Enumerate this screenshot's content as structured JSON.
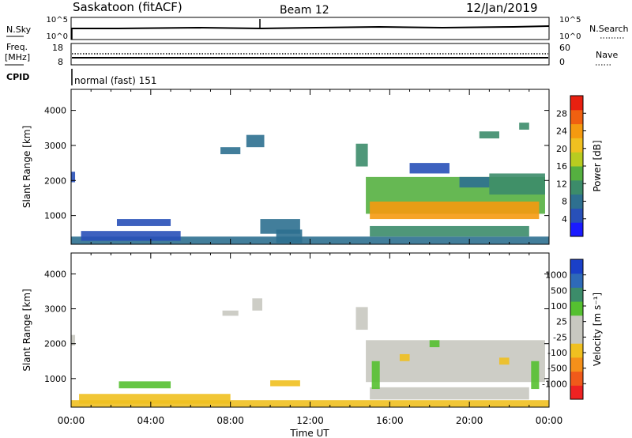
{
  "header": {
    "station": "Saskatoon (fitACF)",
    "beam": "Beam 12",
    "date": "12/Jan/2019"
  },
  "noise_panel": {
    "left_label": "N.Sky",
    "left_ticks": [
      "10^5",
      "10^0"
    ],
    "right_label": "N.Search",
    "right_ticks": [
      "10^5",
      "10^0"
    ]
  },
  "freq_panel": {
    "left_label_1": "Freq.",
    "left_label_2": "[MHz]",
    "left_ticks": [
      "18",
      "8"
    ],
    "right_label": "Nave",
    "right_ticks": [
      "60",
      "0"
    ]
  },
  "cpid_panel": {
    "label": "CPID",
    "mode_text": "normal (fast) 151"
  },
  "colors": {
    "power_scale": [
      "#1a1aff",
      "#2850b8",
      "#2e7090",
      "#3c8c6a",
      "#55b040",
      "#b8cc20",
      "#f0c020",
      "#f59a10",
      "#f06010",
      "#e82010"
    ],
    "velocity_scale": [
      "#ee2222",
      "#f05a1a",
      "#f5901a",
      "#f0c020",
      "#c8c8c0",
      "#c8c8c0",
      "#55c030",
      "#3c8c6a",
      "#2e6ab8",
      "#1a40c8"
    ]
  },
  "chart_data": [
    {
      "type": "heatmap",
      "name": "power",
      "ylabel": "Slant Range [km]",
      "ylim": [
        180,
        4600
      ],
      "y_ticks": [
        "1000",
        "2000",
        "3000",
        "4000"
      ],
      "xlim": [
        0,
        24
      ],
      "colorbar": {
        "label": "Power [dB]",
        "ticks": [
          "4",
          "8",
          "12",
          "16",
          "20",
          "24",
          "28"
        ],
        "range": [
          0,
          32
        ]
      },
      "regions": [
        {
          "t": [
            0.0,
            24.0
          ],
          "r": [
            180,
            400
          ],
          "value": 8
        },
        {
          "t": [
            0.0,
            0.2
          ],
          "r": [
            1950,
            2250
          ],
          "value": 6
        },
        {
          "t": [
            0.5,
            5.5
          ],
          "r": [
            280,
            560
          ],
          "value": 6
        },
        {
          "t": [
            2.3,
            5.0
          ],
          "r": [
            700,
            900
          ],
          "value": 6
        },
        {
          "t": [
            7.5,
            8.5
          ],
          "r": [
            2750,
            2950
          ],
          "value": 8
        },
        {
          "t": [
            8.8,
            9.7
          ],
          "r": [
            2950,
            3300
          ],
          "value": 7
        },
        {
          "t": [
            9.5,
            11.5
          ],
          "r": [
            480,
            900
          ],
          "value": 8
        },
        {
          "t": [
            10.3,
            11.6
          ],
          "r": [
            220,
            600
          ],
          "value": 8
        },
        {
          "t": [
            14.3,
            14.9
          ],
          "r": [
            2400,
            3050
          ],
          "value": 12
        },
        {
          "t": [
            14.8,
            23.8
          ],
          "r": [
            1050,
            2100
          ],
          "value": 14
        },
        {
          "t": [
            15.0,
            23.5
          ],
          "r": [
            900,
            1400
          ],
          "value": 24
        },
        {
          "t": [
            15.0,
            23.0
          ],
          "r": [
            400,
            700
          ],
          "value": 10
        },
        {
          "t": [
            17.0,
            19.0
          ],
          "r": [
            2200,
            2500
          ],
          "value": 6
        },
        {
          "t": [
            19.5,
            21.0
          ],
          "r": [
            1800,
            2100
          ],
          "value": 9
        },
        {
          "t": [
            21.0,
            23.8
          ],
          "r": [
            1600,
            2200
          ],
          "value": 12
        },
        {
          "t": [
            20.5,
            21.5
          ],
          "r": [
            3200,
            3400
          ],
          "value": 10
        },
        {
          "t": [
            22.5,
            23.0
          ],
          "r": [
            3450,
            3650
          ],
          "value": 10
        }
      ]
    },
    {
      "type": "heatmap",
      "name": "velocity",
      "ylabel": "Slant Range [km]",
      "ylim": [
        180,
        4600
      ],
      "y_ticks": [
        "1000",
        "2000",
        "3000",
        "4000"
      ],
      "xlim": [
        0,
        24
      ],
      "xlabel": "Time UT",
      "x_ticks": [
        "00:00",
        "04:00",
        "08:00",
        "12:00",
        "16:00",
        "20:00",
        "00:00"
      ],
      "colorbar": {
        "label": "Velocity [m s⁻¹]",
        "ticks": [
          "-1000",
          "-500",
          "-100",
          "-25",
          "25",
          "100",
          "500",
          "1000"
        ]
      },
      "regions": [
        {
          "t": [
            0.0,
            24.0
          ],
          "r": [
            180,
            380
          ],
          "value": -60
        },
        {
          "t": [
            0.0,
            0.2
          ],
          "r": [
            1950,
            2250
          ],
          "value": 0
        },
        {
          "t": [
            0.4,
            8.0
          ],
          "r": [
            280,
            560
          ],
          "value": -40
        },
        {
          "t": [
            2.4,
            5.0
          ],
          "r": [
            720,
            920
          ],
          "value": 80
        },
        {
          "t": [
            9.1,
            9.6
          ],
          "r": [
            2950,
            3300
          ],
          "value": 0
        },
        {
          "t": [
            7.6,
            8.4
          ],
          "r": [
            2800,
            2950
          ],
          "value": 0
        },
        {
          "t": [
            10.0,
            11.5
          ],
          "r": [
            780,
            950
          ],
          "value": -60
        },
        {
          "t": [
            14.3,
            14.9
          ],
          "r": [
            2400,
            3050
          ],
          "value": 0
        },
        {
          "t": [
            14.8,
            23.8
          ],
          "r": [
            900,
            2100
          ],
          "value": 0
        },
        {
          "t": [
            15.0,
            23.0
          ],
          "r": [
            400,
            750
          ],
          "value": 0
        },
        {
          "t": [
            15.1,
            15.5
          ],
          "r": [
            700,
            1500
          ],
          "value": 80
        },
        {
          "t": [
            23.1,
            23.5
          ],
          "r": [
            700,
            1500
          ],
          "value": 80
        },
        {
          "t": [
            18.0,
            18.5
          ],
          "r": [
            1900,
            2100
          ],
          "value": 80
        },
        {
          "t": [
            16.5,
            17.0
          ],
          "r": [
            1500,
            1700
          ],
          "value": -60
        },
        {
          "t": [
            21.5,
            22.0
          ],
          "r": [
            1400,
            1600
          ],
          "value": -60
        }
      ]
    }
  ]
}
